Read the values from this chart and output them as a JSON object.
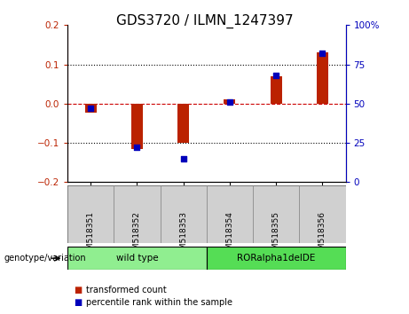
{
  "title": "GDS3720 / ILMN_1247397",
  "samples": [
    "GSM518351",
    "GSM518352",
    "GSM518353",
    "GSM518354",
    "GSM518355",
    "GSM518356"
  ],
  "red_values": [
    -0.022,
    -0.115,
    -0.1,
    0.01,
    0.07,
    0.13
  ],
  "blue_values": [
    47,
    22,
    15,
    51,
    68,
    82
  ],
  "ylim_left": [
    -0.2,
    0.2
  ],
  "ylim_right": [
    0,
    100
  ],
  "yticks_left": [
    -0.2,
    -0.1,
    0.0,
    0.1,
    0.2
  ],
  "yticks_right": [
    0,
    25,
    50,
    75,
    100
  ],
  "ytick_labels_right": [
    "0",
    "25",
    "50",
    "75",
    "100%"
  ],
  "groups": [
    {
      "label": "wild type",
      "indices": [
        0,
        1,
        2
      ],
      "color": "#90ee90"
    },
    {
      "label": "RORalpha1delDE",
      "indices": [
        3,
        4,
        5
      ],
      "color": "#55dd55"
    }
  ],
  "genotype_label": "genotype/variation",
  "legend_red": "transformed count",
  "legend_blue": "percentile rank within the sample",
  "red_color": "#bb2200",
  "blue_color": "#0000bb",
  "hline_color": "#cc0000",
  "grid_color": "#000000",
  "title_fontsize": 11,
  "tick_fontsize": 7.5,
  "label_fontsize": 8
}
